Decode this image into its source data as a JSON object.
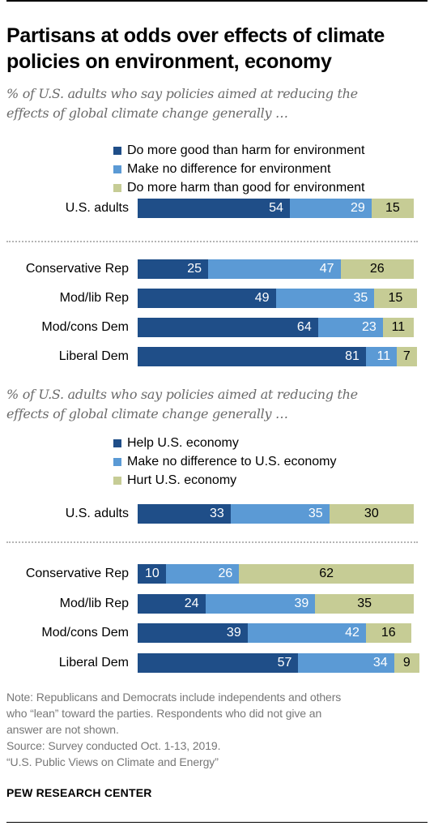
{
  "title_lines": [
    "Partisans at odds over effects of climate",
    "policies on environment, economy"
  ],
  "colors": {
    "dark": "#1f4e88",
    "mid": "#5b9ad5",
    "light": "#c6cc95"
  },
  "chart_data": [
    {
      "type": "bar",
      "orientation": "horizontal",
      "stacked": true,
      "subtitle_lines": [
        "% of U.S. adults who say policies aimed at reducing the",
        "effects of global climate change generally …"
      ],
      "legend": [
        "Do more good than harm for environment",
        "Make no difference for environment",
        "Do more harm than good for environment"
      ],
      "categories": [
        "U.S. adults",
        "Conservative Rep",
        "Mod/lib Rep",
        "Mod/cons Dem",
        "Liberal Dem"
      ],
      "series": [
        {
          "name": "Do more good than harm for environment",
          "values": [
            54,
            25,
            49,
            64,
            81
          ]
        },
        {
          "name": "Make no difference for environment",
          "values": [
            29,
            47,
            35,
            23,
            11
          ]
        },
        {
          "name": "Do more harm than good for environment",
          "values": [
            15,
            26,
            15,
            11,
            7
          ]
        }
      ]
    },
    {
      "type": "bar",
      "orientation": "horizontal",
      "stacked": true,
      "subtitle_lines": [
        "% of U.S. adults who say policies aimed at reducing the",
        "effects of global climate change generally …"
      ],
      "legend": [
        "Help U.S. economy",
        "Make no difference to U.S. economy",
        "Hurt U.S. economy"
      ],
      "categories": [
        "U.S. adults",
        "Conservative Rep",
        "Mod/lib Rep",
        "Mod/cons Dem",
        "Liberal Dem"
      ],
      "series": [
        {
          "name": "Help U.S. economy",
          "values": [
            33,
            10,
            24,
            39,
            57
          ]
        },
        {
          "name": "Make no difference to U.S. economy",
          "values": [
            35,
            26,
            39,
            42,
            34
          ]
        },
        {
          "name": "Hurt U.S. economy",
          "values": [
            30,
            62,
            35,
            16,
            9
          ]
        }
      ]
    }
  ],
  "notes": [
    "Note: Republicans and Democrats include independents and others",
    "who “lean” toward the parties. Respondents who did not give an",
    "answer are not shown.",
    "Source: Survey conducted Oct. 1-13, 2019.",
    "“U.S. Public Views on Climate and Energy”"
  ],
  "brand": "PEW RESEARCH CENTER"
}
